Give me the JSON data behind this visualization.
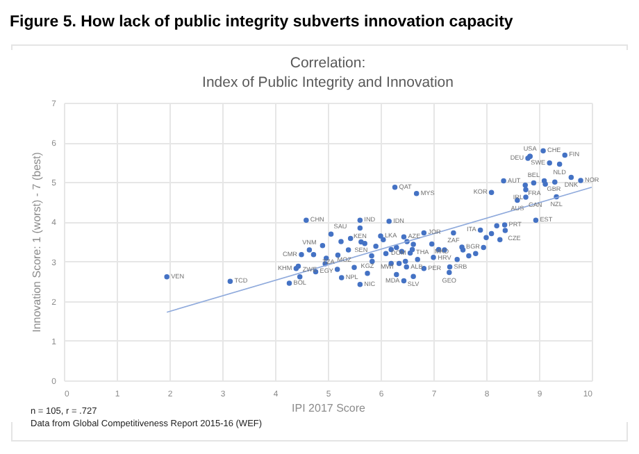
{
  "chart_data": {
    "type": "scatter",
    "title": "Figure 5. How lack of public integrity subverts innovation capacity",
    "subtitle": "Correlation:\nIndex of Public Integrity and Innovation",
    "xlabel": "IPI 2017 Score",
    "ylabel": "Innovation Score: 1 (worst) - 7 (best)",
    "xlim": [
      0,
      10
    ],
    "ylim": [
      0,
      7
    ],
    "xticks": [
      0,
      1,
      2,
      3,
      4,
      5,
      6,
      7,
      8,
      9,
      10
    ],
    "yticks": [
      0,
      1,
      2,
      3,
      4,
      5,
      6,
      7
    ],
    "grid": true,
    "series": [
      {
        "marker": "circle",
        "color": "#4472c4",
        "x": [
          1.95,
          3.15,
          4.27,
          4.47,
          4.4,
          4.5,
          4.65,
          4.59,
          4.77,
          5.06,
          5.61,
          5.61,
          6.16,
          6.82,
          6.27,
          6.68,
          8.83,
          8.79,
          9.08,
          9.49,
          9.2,
          9.39,
          9.61,
          9.79,
          8.33,
          8.74,
          8.9,
          9.1,
          8.75,
          8.1,
          8.75,
          9.33,
          8.59,
          8.94,
          7.89,
          8.35,
          8.36,
          7.38,
          6.0,
          6.44,
          6.62,
          5.63,
          6.97,
          7.54,
          7.21,
          6.82,
          7.31,
          7.3,
          6.62,
          6.44,
          5.61,
          5.26,
          5.5,
          5.18,
          5.75,
          6.3,
          6.49,
          6.56,
          4.44,
          4.73,
          4.97,
          4.95,
          5.39,
          5.19,
          5.43,
          5.83,
          5.91,
          6.2,
          6.3,
          6.1,
          6.4,
          7.56,
          7.95,
          8.26,
          7.67,
          7.8,
          8.1,
          8.2,
          7.1,
          7.0,
          5.84,
          6.2,
          6.47,
          6.6,
          8.83,
          9.12,
          9.3,
          4.9,
          5.25,
          6.05,
          6.5,
          6.7,
          5.7,
          7.45,
          8.0,
          6.35
        ],
        "values": [
          2.61,
          2.5,
          2.45,
          2.61,
          2.82,
          3.17,
          3.29,
          4.04,
          2.74,
          3.69,
          4.04,
          3.84,
          4.01,
          3.72,
          4.87,
          4.71,
          5.65,
          5.6,
          5.79,
          5.68,
          5.48,
          5.45,
          5.12,
          5.04,
          5.03,
          4.92,
          4.98,
          5.03,
          4.81,
          4.74,
          4.62,
          4.63,
          4.54,
          4.04,
          3.79,
          3.92,
          3.78,
          3.72,
          3.64,
          3.62,
          3.43,
          3.49,
          3.44,
          3.36,
          3.29,
          2.82,
          2.86,
          2.72,
          2.62,
          2.51,
          2.42,
          2.59,
          2.85,
          2.8,
          2.7,
          2.67,
          2.86,
          3.21,
          2.88,
          3.17,
          3.08,
          2.94,
          3.29,
          3.16,
          3.58,
          3.14,
          3.38,
          3.3,
          3.35,
          3.2,
          3.25,
          3.29,
          3.35,
          3.55,
          3.14,
          3.2,
          3.7,
          3.9,
          3.3,
          3.1,
          3.0,
          2.95,
          3.0,
          3.3,
          5.65,
          4.95,
          5.0,
          3.4,
          3.5,
          3.55,
          3.5,
          3.05,
          3.45,
          3.05,
          3.6,
          2.95
        ]
      },
      {
        "type": "line",
        "color": "#8faadc",
        "x": [
          1.95,
          10
        ],
        "values": [
          1.72,
          4.87
        ]
      }
    ],
    "annotations": [
      {
        "text": "VEN",
        "x": 1.95,
        "y": 2.61
      },
      {
        "text": "TCD",
        "x": 3.15,
        "y": 2.5
      },
      {
        "text": "BOL",
        "x": 4.27,
        "y": 2.45
      },
      {
        "text": "ZWE",
        "x": 4.47,
        "y": 2.61
      },
      {
        "text": "KHM",
        "x": 4.4,
        "y": 2.82
      },
      {
        "text": "CMR",
        "x": 4.5,
        "y": 3.17
      },
      {
        "text": "VNM",
        "x": 4.65,
        "y": 3.29
      },
      {
        "text": "CHN",
        "x": 4.59,
        "y": 4.04
      },
      {
        "text": "EGY",
        "x": 4.77,
        "y": 2.74
      },
      {
        "text": "SAU",
        "x": 5.06,
        "y": 3.69
      },
      {
        "text": "IND",
        "x": 5.61,
        "y": 4.04
      },
      {
        "text": "KEN",
        "x": 5.61,
        "y": 3.84
      },
      {
        "text": "IDN",
        "x": 6.16,
        "y": 4.01
      },
      {
        "text": "JOR",
        "x": 6.82,
        "y": 3.72
      },
      {
        "text": "QAT",
        "x": 6.27,
        "y": 4.87
      },
      {
        "text": "MYS",
        "x": 6.68,
        "y": 4.71
      },
      {
        "text": "USA",
        "x": 8.83,
        "y": 5.65
      },
      {
        "text": "DEU",
        "x": 8.79,
        "y": 5.6
      },
      {
        "text": "CHE",
        "x": 9.08,
        "y": 5.79
      },
      {
        "text": "FIN",
        "x": 9.49,
        "y": 5.68
      },
      {
        "text": "SWE",
        "x": 9.2,
        "y": 5.48
      },
      {
        "text": "NLD",
        "x": 9.39,
        "y": 5.45
      },
      {
        "text": "DNK",
        "x": 9.61,
        "y": 5.12
      },
      {
        "text": "NOR",
        "x": 9.79,
        "y": 5.04
      },
      {
        "text": "AUT",
        "x": 8.33,
        "y": 5.03
      },
      {
        "text": "FRA",
        "x": 8.74,
        "y": 4.92
      },
      {
        "text": "BEL",
        "x": 8.9,
        "y": 4.98
      },
      {
        "text": "GBR",
        "x": 9.1,
        "y": 5.03
      },
      {
        "text": "IRL",
        "x": 8.75,
        "y": 4.81
      },
      {
        "text": "KOR",
        "x": 8.1,
        "y": 4.74
      },
      {
        "text": "CAN",
        "x": 8.75,
        "y": 4.62
      },
      {
        "text": "NZL",
        "x": 9.33,
        "y": 4.63
      },
      {
        "text": "AUS",
        "x": 8.59,
        "y": 4.54
      },
      {
        "text": "EST",
        "x": 8.94,
        "y": 4.04
      },
      {
        "text": "ITA",
        "x": 7.89,
        "y": 3.79
      },
      {
        "text": "PRT",
        "x": 8.35,
        "y": 3.92
      },
      {
        "text": "CZE",
        "x": 8.36,
        "y": 3.78
      },
      {
        "text": "ZAF",
        "x": 7.38,
        "y": 3.72
      },
      {
        "text": "LKA",
        "x": 6.0,
        "y": 3.64
      },
      {
        "text": "AZE",
        "x": 6.44,
        "y": 3.62
      },
      {
        "text": "THA",
        "x": 6.62,
        "y": 3.43
      },
      {
        "text": "SEN",
        "x": 5.63,
        "y": 3.49
      },
      {
        "text": "MKD",
        "x": 6.97,
        "y": 3.44
      },
      {
        "text": "BGR",
        "x": 7.54,
        "y": 3.36
      },
      {
        "text": "HRV",
        "x": 7.21,
        "y": 3.29
      },
      {
        "text": "PER",
        "x": 6.82,
        "y": 2.82
      },
      {
        "text": "SRB",
        "x": 7.31,
        "y": 2.86
      },
      {
        "text": "GEO",
        "x": 7.3,
        "y": 2.72
      },
      {
        "text": "SLV",
        "x": 6.62,
        "y": 2.62
      },
      {
        "text": "MDA",
        "x": 6.44,
        "y": 2.51
      },
      {
        "text": "NIC",
        "x": 5.61,
        "y": 2.42
      },
      {
        "text": "NPL",
        "x": 5.26,
        "y": 2.59
      },
      {
        "text": "MOZ",
        "x": 5.5,
        "y": 2.85
      },
      {
        "text": "TZA",
        "x": 5.18,
        "y": 2.8
      },
      {
        "text": "KGZ",
        "x": 5.75,
        "y": 2.7
      },
      {
        "text": "MWI",
        "x": 6.3,
        "y": 2.67
      },
      {
        "text": "ALB",
        "x": 6.49,
        "y": 2.86
      },
      {
        "text": "DOM",
        "x": 6.56,
        "y": 3.21
      },
      "n = 105, r = .727",
      "Data from Global Competitiveness Report 2015-16 (WEF)"
    ]
  }
}
